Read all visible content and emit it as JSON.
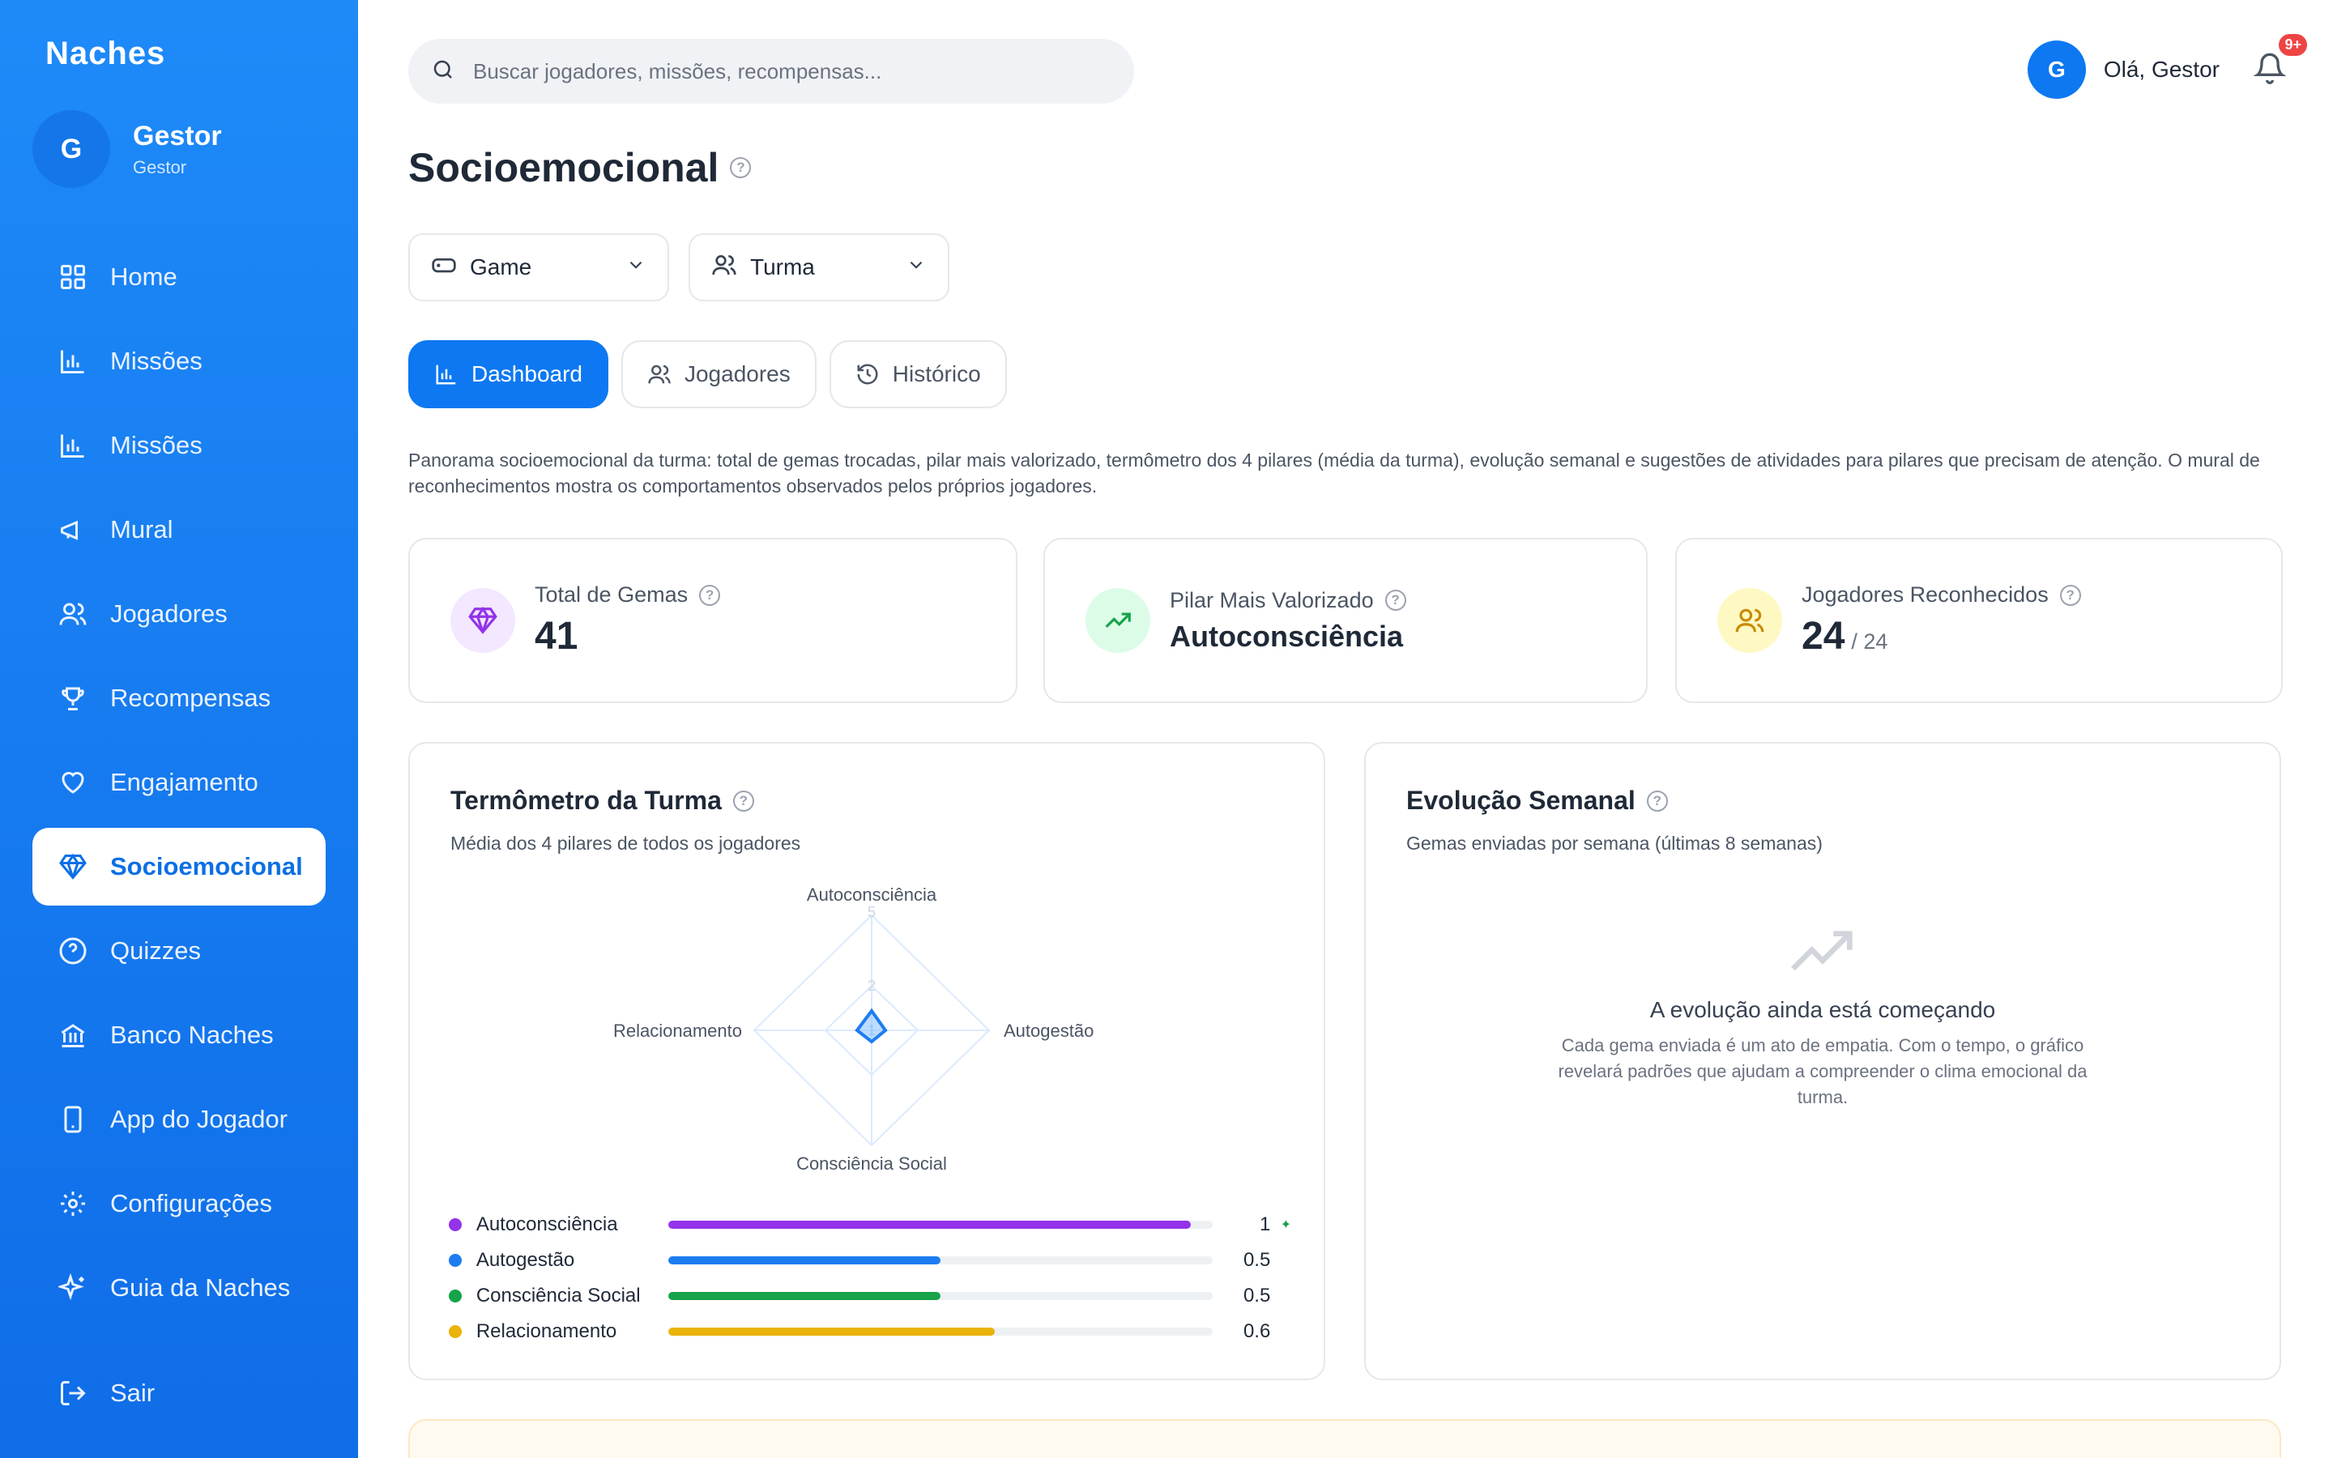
{
  "sidebar": {
    "brand": "Naches",
    "user": {
      "initial": "G",
      "name": "Gestor",
      "role": "Gestor"
    },
    "items": [
      {
        "label": "Home",
        "icon": "grid-icon"
      },
      {
        "label": "Missões",
        "icon": "bar-chart-icon"
      },
      {
        "label": "Missões",
        "icon": "bar-chart-icon"
      },
      {
        "label": "Mural",
        "icon": "megaphone-icon"
      },
      {
        "label": "Jogadores",
        "icon": "users-icon"
      },
      {
        "label": "Recompensas",
        "icon": "trophy-icon"
      },
      {
        "label": "Engajamento",
        "icon": "heart-icon"
      },
      {
        "label": "Socioemocional",
        "icon": "gem-icon",
        "active": true
      },
      {
        "label": "Quizzes",
        "icon": "help-circle-icon"
      },
      {
        "label": "Banco Naches",
        "icon": "bank-icon"
      },
      {
        "label": "App do Jogador",
        "icon": "smartphone-icon"
      },
      {
        "label": "Configurações",
        "icon": "gear-icon"
      },
      {
        "label": "Guia da Naches",
        "icon": "sparkles-icon"
      }
    ],
    "logout": "Sair"
  },
  "header": {
    "search_placeholder": "Buscar jogadores, missões, recompensas...",
    "avatar_initial": "G",
    "greeting": "Olá, Gestor",
    "notifications": "9+"
  },
  "page": {
    "title": "Socioemocional",
    "filters": {
      "game": "Game",
      "class": "Turma"
    },
    "tabs": [
      "Dashboard",
      "Jogadores",
      "Histórico"
    ],
    "description": "Panorama socioemocional da turma: total de gemas trocadas, pilar mais valorizado, termômetro dos 4 pilares (média da turma), evolução semanal e sugestões de atividades para pilares que precisam de atenção. O mural de reconhecimentos mostra os comportamentos observados pelos próprios jogadores."
  },
  "stats": {
    "gems": {
      "label": "Total de Gemas",
      "value": "41"
    },
    "pillar": {
      "label": "Pilar Mais Valorizado",
      "value": "Autoconsciência"
    },
    "players": {
      "label": "Jogadores Reconhecidos",
      "value": "24",
      "total": "/ 24"
    }
  },
  "thermometer": {
    "title": "Termômetro da Turma",
    "subtitle": "Média dos 4 pilares de todos os jogadores",
    "radar_labels": {
      "top": "Autoconsciência",
      "right": "Autogestão",
      "bottom": "Consciência Social",
      "left": "Relacionamento"
    },
    "radar_ticks": [
      "5",
      "2",
      "1"
    ],
    "pillars": [
      {
        "name": "Autoconsciência",
        "value": "1",
        "fraction": 0.96,
        "color": "#9333ea",
        "spark": "✦"
      },
      {
        "name": "Autogestão",
        "value": "0.5",
        "fraction": 0.5,
        "color": "#1d7cf2",
        "spark": ""
      },
      {
        "name": "Consciência Social",
        "value": "0.5",
        "fraction": 0.5,
        "color": "#16a34a",
        "spark": ""
      },
      {
        "name": "Relacionamento",
        "value": "0.6",
        "fraction": 0.6,
        "color": "#eab308",
        "spark": ""
      }
    ]
  },
  "weekly": {
    "title": "Evolução Semanal",
    "subtitle": "Gemas enviadas por semana (últimas 8 semanas)",
    "empty_title": "A evolução ainda está começando",
    "empty_desc": "Cada gema enviada é um ato de empatia. Com o tempo, o gráfico revelará padrões que ajudam a compreender o clima emocional da turma."
  },
  "colors": {
    "primary": "#0d78f2",
    "sidebar": "#1e8af8",
    "border": "#e5e7eb"
  }
}
